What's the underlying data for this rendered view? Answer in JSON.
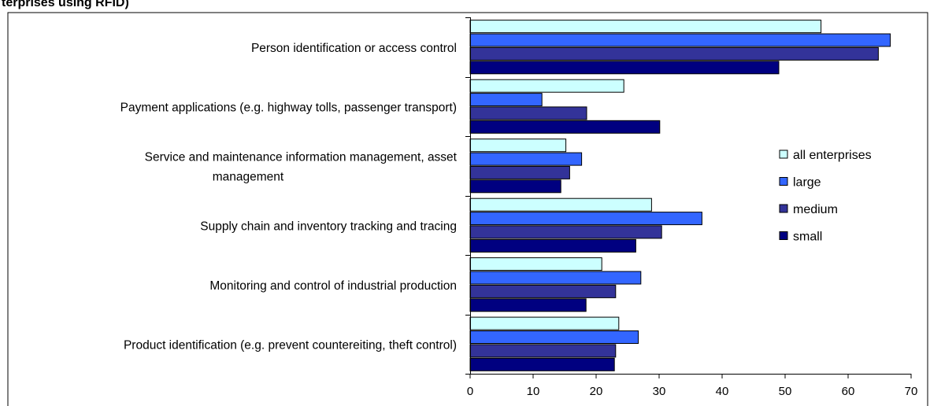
{
  "header": {
    "partial_title": "terprises using RFID)"
  },
  "chart_data": {
    "type": "bar",
    "orientation": "horizontal",
    "categories": [
      [
        "Person identification or access control"
      ],
      [
        "Payment applications (e.g. highway tolls, passenger transport)"
      ],
      [
        "Service and maintenance information management, asset",
        "management"
      ],
      [
        "Supply chain and inventory tracking and tracing"
      ],
      [
        "Monitoring and control of industrial production"
      ],
      [
        "Product identification (e.g. prevent countereiting, theft control)"
      ]
    ],
    "series": [
      {
        "name": "all enterprises",
        "color": "#ccffff",
        "values": [
          55.7,
          24.4,
          15.2,
          28.8,
          20.9,
          23.6
        ]
      },
      {
        "name": "large",
        "color": "#3366ff",
        "values": [
          66.7,
          11.4,
          17.7,
          36.8,
          27.1,
          26.7
        ]
      },
      {
        "name": "medium",
        "color": "#333399",
        "values": [
          64.8,
          18.5,
          15.8,
          30.4,
          23.1,
          23.1
        ]
      },
      {
        "name": "small",
        "color": "#000080",
        "values": [
          49.0,
          30.1,
          14.4,
          26.3,
          18.4,
          22.9
        ]
      }
    ],
    "xlim": [
      0,
      70
    ],
    "xticks": [
      0,
      10,
      20,
      30,
      40,
      50,
      60,
      70
    ],
    "xticks_text": [
      "0",
      "10",
      "20",
      "30",
      "40",
      "50",
      "60",
      "70"
    ],
    "grid": false,
    "legend_position": "right"
  }
}
